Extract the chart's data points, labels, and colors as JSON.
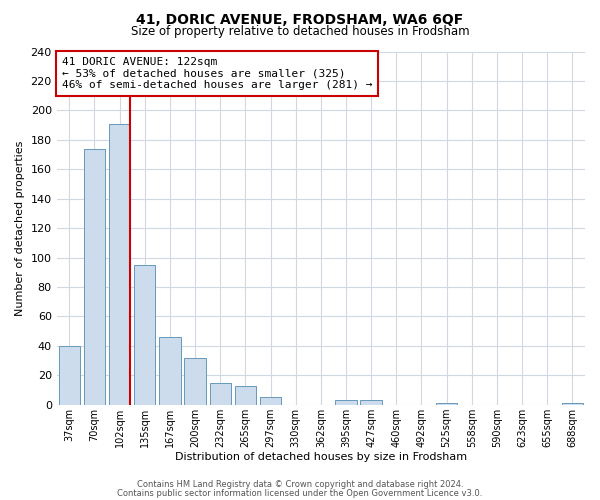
{
  "title": "41, DORIC AVENUE, FRODSHAM, WA6 6QF",
  "subtitle": "Size of property relative to detached houses in Frodsham",
  "xlabel": "Distribution of detached houses by size in Frodsham",
  "ylabel": "Number of detached properties",
  "bar_labels": [
    "37sqm",
    "70sqm",
    "102sqm",
    "135sqm",
    "167sqm",
    "200sqm",
    "232sqm",
    "265sqm",
    "297sqm",
    "330sqm",
    "362sqm",
    "395sqm",
    "427sqm",
    "460sqm",
    "492sqm",
    "525sqm",
    "558sqm",
    "590sqm",
    "623sqm",
    "655sqm",
    "688sqm"
  ],
  "bar_heights": [
    40,
    174,
    191,
    95,
    46,
    32,
    15,
    13,
    5,
    0,
    0,
    3,
    3,
    0,
    0,
    1,
    0,
    0,
    0,
    0,
    1
  ],
  "bar_color": "#ccdcec",
  "bar_edge_color": "#6699bb",
  "red_line_bar_index": 2,
  "annotation_line1": "41 DORIC AVENUE: 122sqm",
  "annotation_line2": "← 53% of detached houses are smaller (325)",
  "annotation_line3": "46% of semi-detached houses are larger (281) →",
  "annotation_box_color": "white",
  "annotation_box_edge_color": "#cc0000",
  "ylim": [
    0,
    240
  ],
  "yticks": [
    0,
    20,
    40,
    60,
    80,
    100,
    120,
    140,
    160,
    180,
    200,
    220,
    240
  ],
  "footer_line1": "Contains HM Land Registry data © Crown copyright and database right 2024.",
  "footer_line2": "Contains public sector information licensed under the Open Government Licence v3.0.",
  "bg_color": "#ffffff",
  "grid_color": "#d0d8e4",
  "title_fontsize": 10,
  "subtitle_fontsize": 8.5
}
